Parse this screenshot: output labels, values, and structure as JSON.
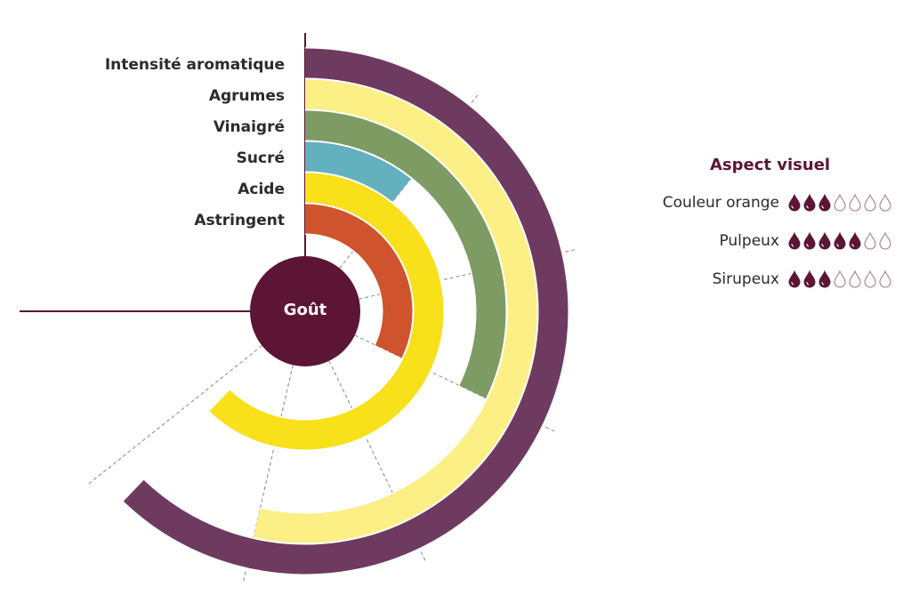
{
  "chart_data": {
    "type": "radial-bar",
    "center_label": "Goût",
    "scale_max": 7,
    "angular_span_degrees": 270,
    "series": [
      {
        "name": "Intensité aromatique",
        "value": 5.8,
        "color": "#6e3a60"
      },
      {
        "name": "Agrumes",
        "value": 5,
        "color": "#fcef85"
      },
      {
        "name": "Vinaigré",
        "value": 3,
        "color": "#7d9b62"
      },
      {
        "name": "Sucré",
        "value": 1,
        "color": "#63b0bf"
      },
      {
        "name": "Acide",
        "value": 5.8,
        "color": "#f8e01a"
      },
      {
        "name": "Astringent",
        "value": 3,
        "color": "#cf532c"
      }
    ]
  },
  "aspect": {
    "title": "Aspect visuel",
    "max": 7,
    "icon": "drop-icon",
    "color": "#5c1535",
    "items": [
      {
        "label": "Couleur orange",
        "value": 3
      },
      {
        "label": "Pulpeux",
        "value": 5
      },
      {
        "label": "Sirupeux",
        "value": 3
      }
    ]
  }
}
